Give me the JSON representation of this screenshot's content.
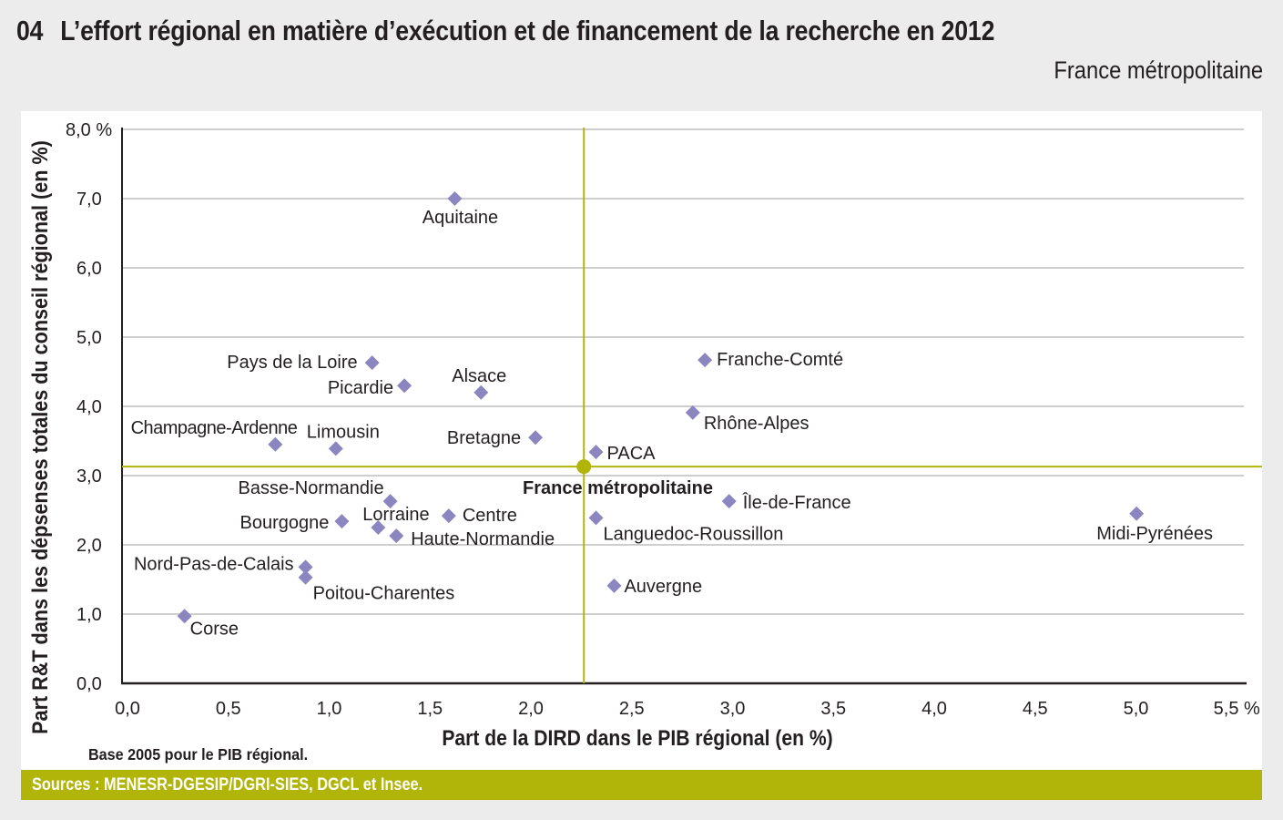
{
  "header": {
    "number": "04",
    "title": "L’effort régional en matière d’exécution et de financement de la recherche en 2012",
    "subtitle": "France métropolitaine"
  },
  "footer": {
    "note": "Base 2005 pour le PIB régional.",
    "sources": "Sources : MENESR-DGESIP/DGRI-SIES, DGCL et Insee."
  },
  "colors": {
    "point": "#8c86c0",
    "reference": "#b1b50a",
    "grid": "#bdbdbd",
    "sources_bar": "#b1b50a"
  },
  "chart_data": {
    "type": "scatter",
    "title": "L’effort régional en matière d’exécution et de financement de la recherche en 2012",
    "xlabel": "Part de la DIRD dans le PIB régional (en %)",
    "ylabel": "Part  R&T dans les dépsenses totales du conseil régional (en %)",
    "xlim": [
      0,
      5.5
    ],
    "ylim": [
      0,
      8
    ],
    "grid": "horizontal",
    "x_ticks": [
      "0,0",
      "0,5",
      "1,0",
      "1,5",
      "2,0",
      "2,5",
      "3,0",
      "3,5",
      "4,0",
      "4,5",
      "5,0",
      "5,5 %"
    ],
    "y_ticks": [
      "0,0",
      "1,0",
      "2,0",
      "3,0",
      "4,0",
      "5,0",
      "6,0",
      "7,0",
      "8,0 %"
    ],
    "reference": {
      "name": "France métropolitaine",
      "x": 2.29,
      "y": 3.13
    },
    "points": [
      {
        "name": "Aquitaine",
        "x": 1.65,
        "y": 7.0
      },
      {
        "name": "Pays de la Loire",
        "x": 1.24,
        "y": 4.63
      },
      {
        "name": "Picardie",
        "x": 1.4,
        "y": 4.3
      },
      {
        "name": "Alsace",
        "x": 1.78,
        "y": 4.2
      },
      {
        "name": "Champagne-Ardenne",
        "x": 0.76,
        "y": 3.45
      },
      {
        "name": "Limousin",
        "x": 1.06,
        "y": 3.39
      },
      {
        "name": "Bretagne",
        "x": 2.05,
        "y": 3.55
      },
      {
        "name": "PACA",
        "x": 2.35,
        "y": 3.34
      },
      {
        "name": "Franche-Comté",
        "x": 2.89,
        "y": 4.67
      },
      {
        "name": "Rhône-Alpes",
        "x": 2.83,
        "y": 3.91
      },
      {
        "name": "Île-de-France",
        "x": 3.01,
        "y": 2.63
      },
      {
        "name": "Midi-Pyrénées",
        "x": 5.03,
        "y": 2.45
      },
      {
        "name": "Languedoc-Roussillon",
        "x": 2.35,
        "y": 2.39
      },
      {
        "name": "Auvergne",
        "x": 2.44,
        "y": 1.41
      },
      {
        "name": "Basse-Normandie",
        "x": 1.33,
        "y": 2.63
      },
      {
        "name": "Bourgogne",
        "x": 1.09,
        "y": 2.34
      },
      {
        "name": "Lorraine",
        "x": 1.27,
        "y": 2.25
      },
      {
        "name": "Haute-Normandie",
        "x": 1.36,
        "y": 2.13
      },
      {
        "name": "Centre",
        "x": 1.62,
        "y": 2.42
      },
      {
        "name": "Nord-Pas-de-Calais",
        "x": 0.91,
        "y": 1.68
      },
      {
        "name": "Poitou-Charentes",
        "x": 0.91,
        "y": 1.53
      },
      {
        "name": "Corse",
        "x": 0.31,
        "y": 0.97
      }
    ]
  }
}
